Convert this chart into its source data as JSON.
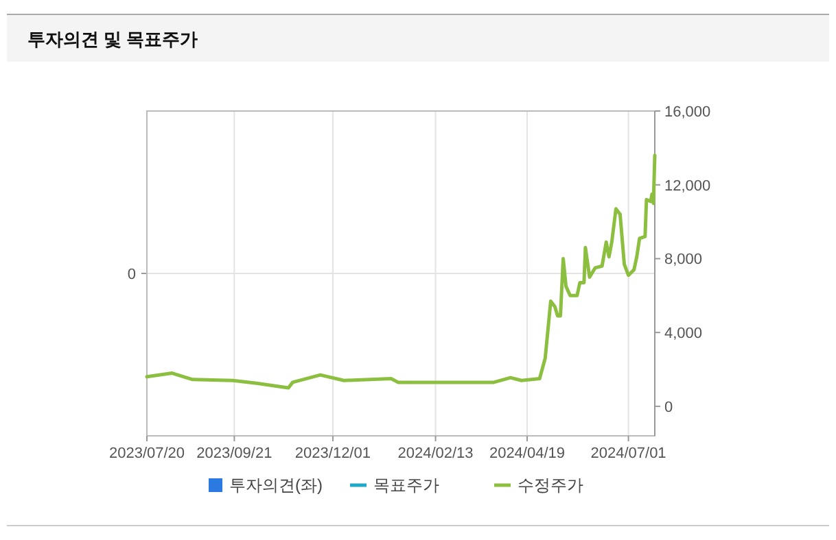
{
  "chart_data": {
    "type": "line",
    "title": "투자의견 및 목표주가",
    "xlim": [
      "2023-07-20",
      "2024-07-20"
    ],
    "xticks": [
      {
        "value": "2023-07-20",
        "label": "2023/07/20"
      },
      {
        "value": "2023-09-21",
        "label": "2023/09/21"
      },
      {
        "value": "2023-12-01",
        "label": "2023/12/01"
      },
      {
        "value": "2024-02-13",
        "label": "2024/02/13"
      },
      {
        "value": "2024-04-19",
        "label": "2024/04/19"
      },
      {
        "value": "2024-07-01",
        "label": "2024/07/01"
      }
    ],
    "annotations": [
      "0"
    ],
    "y2lim": [
      -1600,
      16000
    ],
    "y2ticks": [
      {
        "value": 0,
        "label": "0"
      },
      {
        "value": 4000,
        "label": "4,000"
      },
      {
        "value": 8000,
        "label": "8,000"
      },
      {
        "value": 12000,
        "label": "12,000"
      },
      {
        "value": 16000,
        "label": "16,000"
      }
    ],
    "grid": "x",
    "legend": "bottom",
    "series": [
      {
        "name": "투자의견(좌)",
        "type": "bar",
        "color": "#2a7ae2"
      },
      {
        "name": "목표주가",
        "color": "#1fa9c9",
        "axis": "y2"
      },
      {
        "name": "수정주가",
        "color": "#8cbf3f",
        "axis": "y2",
        "x": [
          "2023-07-20",
          "2023-08-07",
          "2023-08-22",
          "2023-09-20",
          "2023-10-07",
          "2023-10-30",
          "2023-11-02",
          "2023-11-22",
          "2023-12-09",
          "2024-01-12",
          "2024-01-17",
          "2024-03-26",
          "2024-04-07",
          "2024-04-15",
          "2024-04-28",
          "2024-05-02",
          "2024-05-06",
          "2024-05-09",
          "2024-05-11",
          "2024-05-13",
          "2024-05-15",
          "2024-05-17",
          "2024-05-20",
          "2024-05-25",
          "2024-05-27",
          "2024-05-30",
          "2024-05-31",
          "2024-06-03",
          "2024-06-07",
          "2024-06-12",
          "2024-06-15",
          "2024-06-17",
          "2024-06-19",
          "2024-06-22",
          "2024-06-25",
          "2024-06-28",
          "2024-07-01",
          "2024-07-05",
          "2024-07-07",
          "2024-07-09",
          "2024-07-13",
          "2024-07-14",
          "2024-07-17",
          "2024-07-18",
          "2024-07-19",
          "2024-07-20"
        ],
        "values": [
          1600,
          1800,
          1450,
          1400,
          1250,
          1000,
          1300,
          1700,
          1400,
          1500,
          1300,
          1300,
          1550,
          1400,
          1500,
          2600,
          5700,
          5400,
          4900,
          4900,
          8000,
          6500,
          6000,
          6000,
          6700,
          6700,
          8600,
          7000,
          7500,
          7600,
          8900,
          8100,
          8900,
          10700,
          10400,
          7700,
          7100,
          7400,
          8100,
          9100,
          9200,
          11200,
          11100,
          11500,
          11000,
          13600
        ]
      }
    ]
  }
}
